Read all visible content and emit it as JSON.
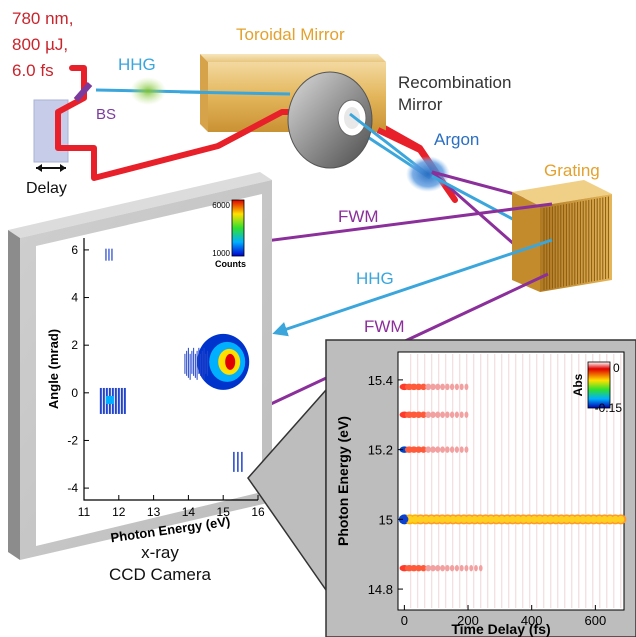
{
  "labels": {
    "laser_line1": "780 nm,",
    "laser_line2": "800 µJ,",
    "laser_line3": "6.0 fs",
    "hhg_top": "HHG",
    "bs": "BS",
    "delay": "Delay",
    "toroidal_mirror": "Toroidal Mirror",
    "recombination_line1": "Recombination",
    "recombination_line2": "Mirror",
    "argon": "Argon",
    "grating": "Grating",
    "fwm_top": "FWM",
    "hhg_mid": "HHG",
    "fwm_mid": "FWM",
    "camera_line1": "x-ray",
    "camera_line2": "CCD Camera"
  },
  "colors": {
    "laser_red": "#e8202a",
    "hhg_blue": "#3aa6dc",
    "fwm_purple": "#8b2f9a",
    "toroidal_gold": "#e3b55a",
    "grating_gold": "#d9a441",
    "argon_blue": "#2a6fc2",
    "hhg_green": "#7ec23a",
    "label_red": "#c8242c",
    "label_gold": "#e3a12e"
  },
  "chart_data": [
    {
      "type": "heatmap",
      "xlabel": "Photon Energy (eV)",
      "ylabel": "Angle (mrad)",
      "xlim": [
        11,
        16
      ],
      "ylim": [
        -4.5,
        6.5
      ],
      "xticks": [
        11,
        12,
        13,
        14,
        15,
        16
      ],
      "yticks": [
        -4,
        -2,
        0,
        2,
        4,
        6
      ],
      "colorbar": {
        "min": 1000,
        "max": 6000,
        "label": "Counts"
      },
      "features": [
        {
          "name": "HHG harmonic",
          "x": 15.0,
          "y": 1.3,
          "intensity": "high"
        },
        {
          "name": "FWM lower",
          "x": 15.4,
          "y": -2.9,
          "intensity": "low"
        },
        {
          "name": "FWM upper",
          "x": 11.7,
          "y": 5.8,
          "intensity": "low"
        },
        {
          "name": "harmonic low",
          "x": 11.8,
          "y": -0.3,
          "intensity": "medium"
        }
      ]
    },
    {
      "type": "heatmap",
      "xlabel": "Time Delay (fs)",
      "ylabel": "Photon Energy (eV)",
      "xlim": [
        -20,
        690
      ],
      "ylim": [
        14.74,
        15.48
      ],
      "xticks": [
        0,
        200,
        400,
        600
      ],
      "yticks": [
        14.8,
        15,
        15.2,
        15.4
      ],
      "colorbar": {
        "min": -0.15,
        "max": 0,
        "label": "Abs"
      },
      "rows": [
        15.38,
        15.3,
        15.2,
        15.0,
        14.86
      ]
    }
  ]
}
